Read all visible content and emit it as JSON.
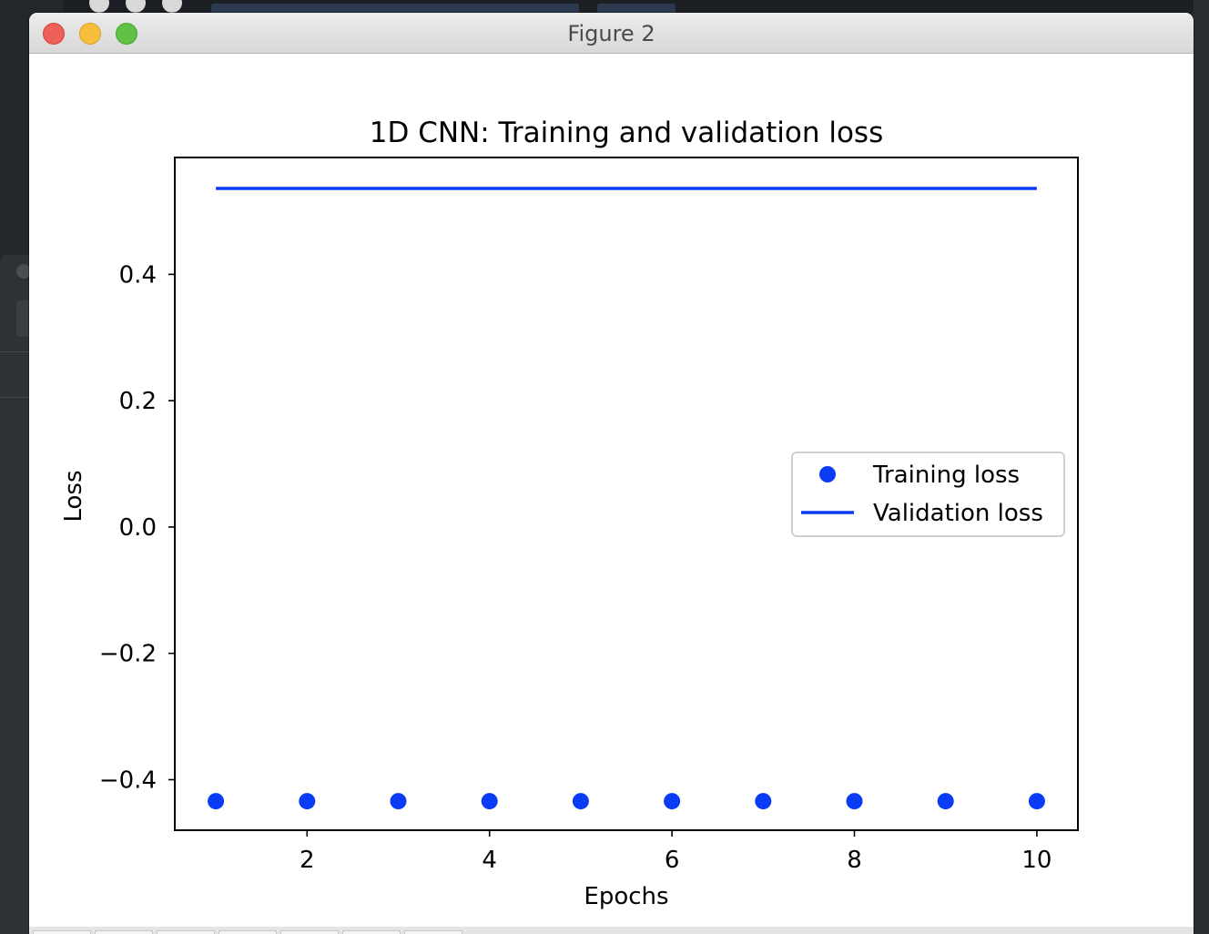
{
  "window": {
    "title": "Figure 2"
  },
  "chart_data": {
    "type": "line",
    "title": "1D CNN: Training and validation loss",
    "xlabel": "Epochs",
    "ylabel": "Loss",
    "xlim": [
      0.55,
      10.45
    ],
    "ylim": [
      -0.48,
      0.585
    ],
    "xticks": [
      2,
      4,
      6,
      8,
      10
    ],
    "xtick_labels": [
      "2",
      "4",
      "6",
      "8",
      "10"
    ],
    "yticks": [
      -0.4,
      -0.2,
      0.0,
      0.2,
      0.4
    ],
    "ytick_labels": [
      "−0.4",
      "−0.2",
      "0.0",
      "0.2",
      "0.4"
    ],
    "grid": false,
    "legend_position": "center-right",
    "series": [
      {
        "name": "Training loss",
        "style": "markers",
        "color": "#0a3cf5",
        "x": [
          1,
          2,
          3,
          4,
          5,
          6,
          7,
          8,
          9,
          10
        ],
        "values": [
          -0.434,
          -0.434,
          -0.434,
          -0.434,
          -0.434,
          -0.434,
          -0.434,
          -0.434,
          -0.434,
          -0.434
        ]
      },
      {
        "name": "Validation loss",
        "style": "line",
        "color": "#0a3cf5",
        "x": [
          1,
          2,
          3,
          4,
          5,
          6,
          7,
          8,
          9,
          10
        ],
        "values": [
          0.536,
          0.536,
          0.536,
          0.536,
          0.536,
          0.536,
          0.536,
          0.536,
          0.536,
          0.536
        ]
      }
    ]
  }
}
